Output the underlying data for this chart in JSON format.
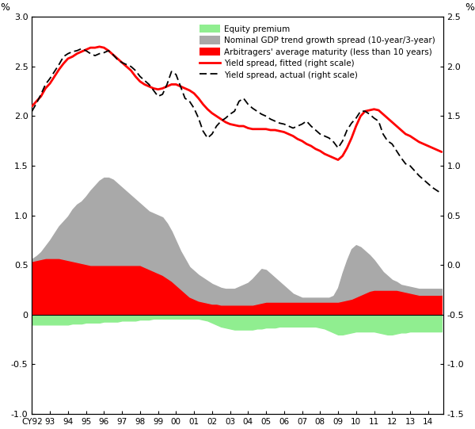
{
  "title": "",
  "xlabel": "",
  "ylabel_left": "%",
  "ylabel_right": "%",
  "xlim": [
    1992.0,
    2014.83
  ],
  "ylim_left": [
    -1.0,
    3.0
  ],
  "ylim_right": [
    -1.5,
    2.5
  ],
  "x_ticks": [
    1992,
    1993,
    1994,
    1995,
    1996,
    1997,
    1998,
    1999,
    2000,
    2001,
    2002,
    2003,
    2004,
    2005,
    2006,
    2007,
    2008,
    2009,
    2010,
    2011,
    2012,
    2013,
    2014
  ],
  "x_tick_labels": [
    "CY92",
    "93",
    "94",
    "95",
    "96",
    "97",
    "98",
    "99",
    "00",
    "01",
    "02",
    "03",
    "04",
    "05",
    "06",
    "07",
    "08",
    "09",
    "10",
    "11",
    "12",
    "13",
    "14"
  ],
  "yticks_left": [
    -1.0,
    -0.5,
    0.0,
    0.5,
    1.0,
    1.5,
    2.0,
    2.5,
    3.0
  ],
  "ytick_labels_left": [
    "-1.0",
    "-0.5",
    "0",
    "0.5",
    "1.0",
    "1.5",
    "2.0",
    "2.5",
    "3.0"
  ],
  "yticks_right": [
    -1.5,
    -1.0,
    -0.5,
    0.0,
    0.5,
    1.0,
    1.5,
    2.0,
    2.5
  ],
  "ytick_labels_right": [
    "-1.5",
    "-1.0",
    "-0.5",
    "0.0",
    "0.5",
    "1.0",
    "1.5",
    "2.0",
    "2.5"
  ],
  "colors": {
    "equity_premium": "#90EE90",
    "gdp_spread": "#A9A9A9",
    "arbitragers": "#FF0000",
    "yield_fitted": "#FF0000",
    "yield_actual": "#000000"
  },
  "equity_premium_x": [
    1992.0,
    1992.25,
    1992.5,
    1992.75,
    1993.0,
    1993.25,
    1993.5,
    1993.75,
    1994.0,
    1994.25,
    1994.5,
    1994.75,
    1995.0,
    1995.25,
    1995.5,
    1995.75,
    1996.0,
    1996.25,
    1996.5,
    1996.75,
    1997.0,
    1997.25,
    1997.5,
    1997.75,
    1998.0,
    1998.25,
    1998.5,
    1998.75,
    1999.0,
    1999.25,
    1999.5,
    1999.75,
    2000.0,
    2000.25,
    2000.5,
    2000.75,
    2001.0,
    2001.25,
    2001.5,
    2001.75,
    2002.0,
    2002.25,
    2002.5,
    2002.75,
    2003.0,
    2003.25,
    2003.5,
    2003.75,
    2004.0,
    2004.25,
    2004.5,
    2004.75,
    2005.0,
    2005.25,
    2005.5,
    2005.75,
    2006.0,
    2006.25,
    2006.5,
    2006.75,
    2007.0,
    2007.25,
    2007.5,
    2007.75,
    2008.0,
    2008.25,
    2008.5,
    2008.75,
    2009.0,
    2009.25,
    2009.5,
    2009.75,
    2010.0,
    2010.25,
    2010.5,
    2010.75,
    2011.0,
    2011.25,
    2011.5,
    2011.75,
    2012.0,
    2012.25,
    2012.5,
    2012.75,
    2013.0,
    2013.25,
    2013.5,
    2013.75,
    2014.0,
    2014.25,
    2014.5,
    2014.75
  ],
  "equity_premium_y": [
    -0.1,
    -0.1,
    -0.1,
    -0.1,
    -0.1,
    -0.1,
    -0.1,
    -0.1,
    -0.1,
    -0.09,
    -0.09,
    -0.09,
    -0.08,
    -0.08,
    -0.08,
    -0.08,
    -0.07,
    -0.07,
    -0.07,
    -0.07,
    -0.06,
    -0.06,
    -0.06,
    -0.06,
    -0.05,
    -0.05,
    -0.05,
    -0.04,
    -0.04,
    -0.04,
    -0.04,
    -0.04,
    -0.04,
    -0.04,
    -0.04,
    -0.04,
    -0.04,
    -0.04,
    -0.05,
    -0.06,
    -0.08,
    -0.1,
    -0.12,
    -0.13,
    -0.14,
    -0.15,
    -0.15,
    -0.15,
    -0.15,
    -0.15,
    -0.14,
    -0.14,
    -0.13,
    -0.13,
    -0.13,
    -0.12,
    -0.12,
    -0.12,
    -0.12,
    -0.12,
    -0.12,
    -0.12,
    -0.12,
    -0.12,
    -0.13,
    -0.14,
    -0.16,
    -0.18,
    -0.2,
    -0.2,
    -0.19,
    -0.18,
    -0.17,
    -0.17,
    -0.17,
    -0.17,
    -0.17,
    -0.18,
    -0.19,
    -0.2,
    -0.2,
    -0.19,
    -0.18,
    -0.18,
    -0.17,
    -0.17,
    -0.17,
    -0.17,
    -0.17,
    -0.17,
    -0.17,
    -0.17
  ],
  "gdp_spread_x": [
    1992.0,
    1992.25,
    1992.5,
    1992.75,
    1993.0,
    1993.25,
    1993.5,
    1993.75,
    1994.0,
    1994.25,
    1994.5,
    1994.75,
    1995.0,
    1995.25,
    1995.5,
    1995.75,
    1996.0,
    1996.25,
    1996.5,
    1996.75,
    1997.0,
    1997.25,
    1997.5,
    1997.75,
    1998.0,
    1998.25,
    1998.5,
    1998.75,
    1999.0,
    1999.25,
    1999.5,
    1999.75,
    2000.0,
    2000.25,
    2000.5,
    2000.75,
    2001.0,
    2001.25,
    2001.5,
    2001.75,
    2002.0,
    2002.25,
    2002.5,
    2002.75,
    2003.0,
    2003.25,
    2003.5,
    2003.75,
    2004.0,
    2004.25,
    2004.5,
    2004.75,
    2005.0,
    2005.25,
    2005.5,
    2005.75,
    2006.0,
    2006.25,
    2006.5,
    2006.75,
    2007.0,
    2007.25,
    2007.5,
    2007.75,
    2008.0,
    2008.25,
    2008.5,
    2008.75,
    2009.0,
    2009.25,
    2009.5,
    2009.75,
    2010.0,
    2010.25,
    2010.5,
    2010.75,
    2011.0,
    2011.25,
    2011.5,
    2011.75,
    2012.0,
    2012.25,
    2012.5,
    2012.75,
    2013.0,
    2013.25,
    2013.5,
    2013.75,
    2014.0,
    2014.25,
    2014.5,
    2014.75
  ],
  "gdp_spread_y": [
    0.02,
    0.04,
    0.07,
    0.12,
    0.18,
    0.25,
    0.32,
    0.38,
    0.44,
    0.52,
    0.58,
    0.62,
    0.68,
    0.75,
    0.8,
    0.85,
    0.88,
    0.88,
    0.86,
    0.82,
    0.78,
    0.74,
    0.7,
    0.66,
    0.62,
    0.6,
    0.58,
    0.58,
    0.58,
    0.58,
    0.55,
    0.5,
    0.44,
    0.38,
    0.34,
    0.3,
    0.28,
    0.26,
    0.24,
    0.22,
    0.2,
    0.18,
    0.17,
    0.16,
    0.16,
    0.16,
    0.18,
    0.2,
    0.22,
    0.26,
    0.3,
    0.34,
    0.32,
    0.28,
    0.24,
    0.2,
    0.16,
    0.12,
    0.08,
    0.06,
    0.04,
    0.04,
    0.04,
    0.04,
    0.04,
    0.04,
    0.04,
    0.06,
    0.14,
    0.28,
    0.4,
    0.5,
    0.52,
    0.48,
    0.42,
    0.36,
    0.3,
    0.24,
    0.18,
    0.14,
    0.1,
    0.08,
    0.06,
    0.06,
    0.06,
    0.06,
    0.06,
    0.06,
    0.06,
    0.06,
    0.06,
    0.06
  ],
  "arbitragers_x": [
    1992.0,
    1992.25,
    1992.5,
    1992.75,
    1993.0,
    1993.25,
    1993.5,
    1993.75,
    1994.0,
    1994.25,
    1994.5,
    1994.75,
    1995.0,
    1995.25,
    1995.5,
    1995.75,
    1996.0,
    1996.25,
    1996.5,
    1996.75,
    1997.0,
    1997.25,
    1997.5,
    1997.75,
    1998.0,
    1998.25,
    1998.5,
    1998.75,
    1999.0,
    1999.25,
    1999.5,
    1999.75,
    2000.0,
    2000.25,
    2000.5,
    2000.75,
    2001.0,
    2001.25,
    2001.5,
    2001.75,
    2002.0,
    2002.25,
    2002.5,
    2002.75,
    2003.0,
    2003.25,
    2003.5,
    2003.75,
    2004.0,
    2004.25,
    2004.5,
    2004.75,
    2005.0,
    2005.25,
    2005.5,
    2005.75,
    2006.0,
    2006.25,
    2006.5,
    2006.75,
    2007.0,
    2007.25,
    2007.5,
    2007.75,
    2008.0,
    2008.25,
    2008.5,
    2008.75,
    2009.0,
    2009.25,
    2009.5,
    2009.75,
    2010.0,
    2010.25,
    2010.5,
    2010.75,
    2011.0,
    2011.25,
    2011.5,
    2011.75,
    2012.0,
    2012.25,
    2012.5,
    2012.75,
    2013.0,
    2013.25,
    2013.5,
    2013.75,
    2014.0,
    2014.25,
    2014.5,
    2014.75
  ],
  "arbitragers_y": [
    0.54,
    0.55,
    0.56,
    0.57,
    0.57,
    0.57,
    0.57,
    0.56,
    0.55,
    0.54,
    0.53,
    0.52,
    0.51,
    0.5,
    0.5,
    0.5,
    0.5,
    0.5,
    0.5,
    0.5,
    0.5,
    0.5,
    0.5,
    0.5,
    0.5,
    0.48,
    0.46,
    0.44,
    0.42,
    0.4,
    0.37,
    0.34,
    0.3,
    0.26,
    0.22,
    0.18,
    0.16,
    0.14,
    0.13,
    0.12,
    0.11,
    0.11,
    0.1,
    0.1,
    0.1,
    0.1,
    0.1,
    0.1,
    0.1,
    0.1,
    0.11,
    0.12,
    0.13,
    0.13,
    0.13,
    0.13,
    0.13,
    0.13,
    0.13,
    0.13,
    0.13,
    0.13,
    0.13,
    0.13,
    0.13,
    0.13,
    0.13,
    0.13,
    0.13,
    0.14,
    0.15,
    0.16,
    0.18,
    0.2,
    0.22,
    0.24,
    0.25,
    0.25,
    0.25,
    0.25,
    0.25,
    0.25,
    0.24,
    0.23,
    0.22,
    0.21,
    0.2,
    0.2,
    0.2,
    0.2,
    0.2,
    0.2
  ],
  "yield_fitted_x": [
    1992.0,
    1992.25,
    1992.5,
    1992.75,
    1993.0,
    1993.25,
    1993.5,
    1993.75,
    1994.0,
    1994.25,
    1994.5,
    1994.75,
    1995.0,
    1995.25,
    1995.5,
    1995.75,
    1996.0,
    1996.25,
    1996.5,
    1996.75,
    1997.0,
    1997.25,
    1997.5,
    1997.75,
    1998.0,
    1998.25,
    1998.5,
    1998.75,
    1999.0,
    1999.25,
    1999.5,
    1999.75,
    2000.0,
    2000.25,
    2000.5,
    2000.75,
    2001.0,
    2001.25,
    2001.5,
    2001.75,
    2002.0,
    2002.25,
    2002.5,
    2002.75,
    2003.0,
    2003.25,
    2003.5,
    2003.75,
    2004.0,
    2004.25,
    2004.5,
    2004.75,
    2005.0,
    2005.25,
    2005.5,
    2005.75,
    2006.0,
    2006.25,
    2006.5,
    2006.75,
    2007.0,
    2007.25,
    2007.5,
    2007.75,
    2008.0,
    2008.25,
    2008.5,
    2008.75,
    2009.0,
    2009.25,
    2009.5,
    2009.75,
    2010.0,
    2010.25,
    2010.5,
    2010.75,
    2011.0,
    2011.25,
    2011.5,
    2011.75,
    2012.0,
    2012.25,
    2012.5,
    2012.75,
    2013.0,
    2013.25,
    2013.5,
    2013.75,
    2014.0,
    2014.25,
    2014.5,
    2014.75
  ],
  "yield_fitted_y": [
    1.6,
    1.65,
    1.7,
    1.78,
    1.83,
    1.9,
    1.97,
    2.03,
    2.08,
    2.1,
    2.13,
    2.15,
    2.17,
    2.19,
    2.19,
    2.2,
    2.19,
    2.16,
    2.12,
    2.08,
    2.04,
    2.0,
    1.96,
    1.9,
    1.85,
    1.82,
    1.8,
    1.78,
    1.77,
    1.78,
    1.8,
    1.82,
    1.82,
    1.8,
    1.78,
    1.76,
    1.73,
    1.68,
    1.62,
    1.57,
    1.53,
    1.5,
    1.47,
    1.44,
    1.42,
    1.41,
    1.4,
    1.4,
    1.38,
    1.37,
    1.37,
    1.37,
    1.37,
    1.36,
    1.36,
    1.35,
    1.34,
    1.32,
    1.3,
    1.27,
    1.25,
    1.22,
    1.2,
    1.17,
    1.15,
    1.12,
    1.1,
    1.08,
    1.06,
    1.1,
    1.18,
    1.28,
    1.4,
    1.5,
    1.55,
    1.56,
    1.57,
    1.56,
    1.52,
    1.48,
    1.44,
    1.4,
    1.36,
    1.32,
    1.3,
    1.27,
    1.24,
    1.22,
    1.2,
    1.18,
    1.16,
    1.14
  ],
  "yield_actual_x": [
    1992.0,
    1992.25,
    1992.5,
    1992.75,
    1993.0,
    1993.25,
    1993.5,
    1993.75,
    1994.0,
    1994.25,
    1994.5,
    1994.75,
    1995.0,
    1995.25,
    1995.5,
    1995.75,
    1996.0,
    1996.25,
    1996.5,
    1996.75,
    1997.0,
    1997.25,
    1997.5,
    1997.75,
    1998.0,
    1998.25,
    1998.5,
    1998.75,
    1999.0,
    1999.25,
    1999.5,
    1999.75,
    2000.0,
    2000.25,
    2000.5,
    2000.75,
    2001.0,
    2001.25,
    2001.5,
    2001.75,
    2002.0,
    2002.25,
    2002.5,
    2002.75,
    2003.0,
    2003.25,
    2003.5,
    2003.75,
    2004.0,
    2004.25,
    2004.5,
    2004.75,
    2005.0,
    2005.25,
    2005.5,
    2005.75,
    2006.0,
    2006.25,
    2006.5,
    2006.75,
    2007.0,
    2007.25,
    2007.5,
    2007.75,
    2008.0,
    2008.25,
    2008.5,
    2008.75,
    2009.0,
    2009.25,
    2009.5,
    2009.75,
    2010.0,
    2010.25,
    2010.5,
    2010.75,
    2011.0,
    2011.25,
    2011.5,
    2011.75,
    2012.0,
    2012.25,
    2012.5,
    2012.75,
    2013.0,
    2013.25,
    2013.5,
    2013.75,
    2014.0,
    2014.25,
    2014.5,
    2014.75
  ],
  "yield_actual_y": [
    1.55,
    1.63,
    1.72,
    1.82,
    1.88,
    1.95,
    2.02,
    2.1,
    2.13,
    2.15,
    2.16,
    2.18,
    2.16,
    2.13,
    2.11,
    2.13,
    2.14,
    2.16,
    2.12,
    2.07,
    2.04,
    2.02,
    2.0,
    1.96,
    1.9,
    1.86,
    1.82,
    1.76,
    1.7,
    1.72,
    1.82,
    1.95,
    1.92,
    1.8,
    1.68,
    1.65,
    1.58,
    1.48,
    1.35,
    1.28,
    1.32,
    1.4,
    1.45,
    1.48,
    1.52,
    1.55,
    1.65,
    1.68,
    1.62,
    1.58,
    1.55,
    1.52,
    1.5,
    1.47,
    1.45,
    1.43,
    1.42,
    1.4,
    1.38,
    1.4,
    1.42,
    1.45,
    1.4,
    1.36,
    1.32,
    1.3,
    1.28,
    1.24,
    1.18,
    1.25,
    1.36,
    1.43,
    1.48,
    1.55,
    1.55,
    1.52,
    1.48,
    1.45,
    1.32,
    1.25,
    1.22,
    1.15,
    1.08,
    1.02,
    1.0,
    0.95,
    0.9,
    0.86,
    0.82,
    0.78,
    0.75,
    0.72
  ],
  "background_color": "#FFFFFF"
}
